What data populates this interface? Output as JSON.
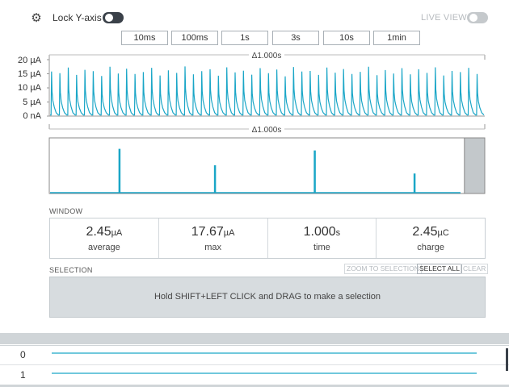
{
  "controls": {
    "lock_y_axis_label": "Lock Y-axis",
    "lock_y_axis_on": true,
    "live_view_label": "LIVE VIEW",
    "live_view_on": false,
    "settings_icon": "gear-icon"
  },
  "time_windows": [
    "10ms",
    "100ms",
    "1s",
    "3s",
    "10s",
    "1min"
  ],
  "chart": {
    "top_delta": "Δ1.000s",
    "bottom_delta": "Δ1.000s",
    "y_ticks": [
      "20 µA",
      "15 µA",
      "10 µA",
      "5 µA",
      "0 nA"
    ],
    "accent_color": "#1aa6c7"
  },
  "chart_data": {
    "type": "line",
    "title": "",
    "xlabel": "",
    "ylabel": "",
    "ylim": [
      0,
      20
    ],
    "y_unit": "µA",
    "x_window_s": 1.0,
    "pulse_count": 52,
    "baseline": 0.4,
    "series": [
      {
        "values": [
          15.8,
          15.2,
          17.2,
          14.6,
          16.4,
          15.9,
          14.2,
          17.5,
          15.1,
          16.8,
          14.9,
          15.6,
          17.1,
          14.4,
          16.2,
          15.3,
          17.6,
          14.8,
          15.9,
          16.6,
          14.3,
          17.3,
          15.5,
          16.1,
          14.7,
          17.0,
          15.2,
          16.5,
          14.1,
          17.4,
          15.8,
          16.0,
          14.6,
          17.2,
          15.4,
          16.7,
          14.9,
          15.7,
          17.5,
          14.5,
          16.3,
          15.1,
          17.0,
          14.8,
          16.6,
          15.3,
          17.3,
          14.4,
          16.0,
          15.6,
          17.1,
          14.9
        ]
      }
    ]
  },
  "overview": {
    "spikes": [
      {
        "position": 0.16,
        "value": 0.8
      },
      {
        "position": 0.38,
        "value": 0.5
      },
      {
        "position": 0.61,
        "value": 0.77
      },
      {
        "position": 0.84,
        "value": 0.35
      }
    ],
    "window_start": 0.955
  },
  "window": {
    "section_label": "WINDOW",
    "stats": [
      {
        "value": "2.45",
        "unit": "µA",
        "label": "average"
      },
      {
        "value": "17.67",
        "unit": "µA",
        "label": "max"
      },
      {
        "value": "1.000",
        "unit": "s",
        "label": "time"
      },
      {
        "value": "2.45",
        "unit": "µC",
        "label": "charge"
      }
    ]
  },
  "selection": {
    "section_label": "SELECTION",
    "zoom_label": "ZOOM TO SELECTION",
    "select_all_label": "SELECT ALL",
    "clear_label": "CLEAR",
    "hint": "Hold SHIFT+LEFT CLICK and DRAG to make a selection"
  },
  "channels": [
    "0",
    "1"
  ]
}
